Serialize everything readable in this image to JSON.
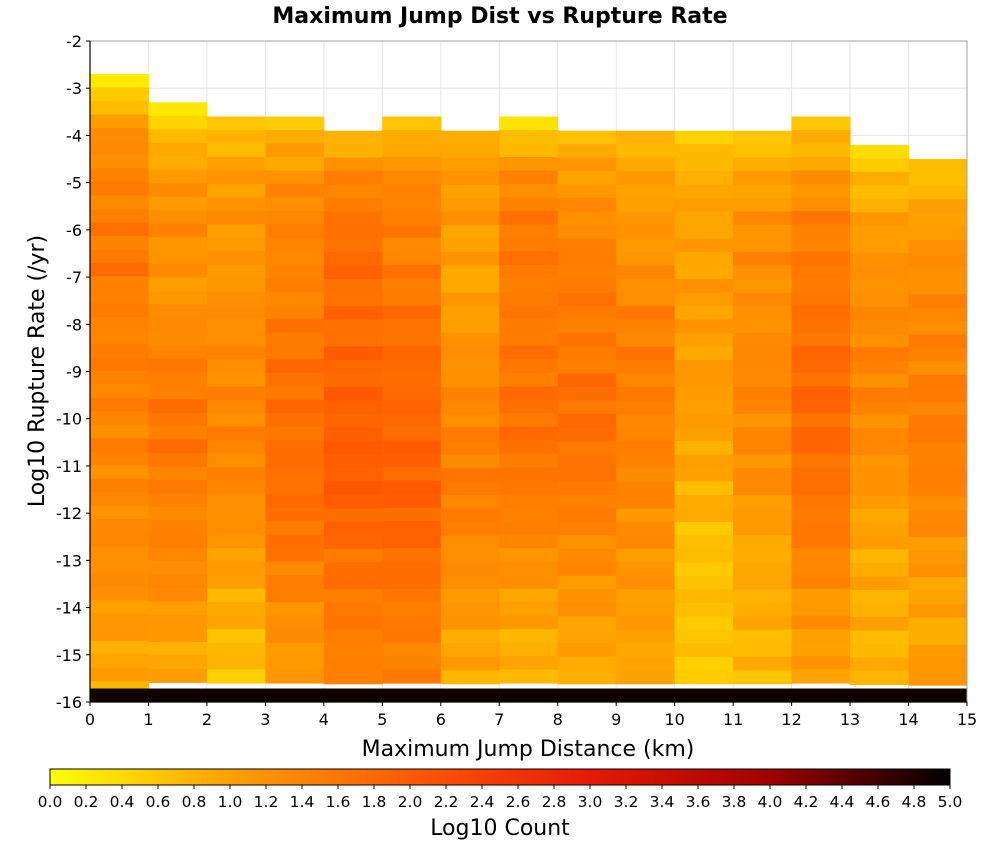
{
  "chart_data": {
    "type": "heatmap",
    "title": "Maximum Jump Dist vs Rupture Rate",
    "xlabel": "Maximum Jump Distance (km)",
    "ylabel": "Log10 Rupture Rate (/yr)",
    "colorbar_label": "Log10 Count",
    "xlim": [
      0,
      15
    ],
    "ylim": [
      -16,
      -2
    ],
    "x_ticks": [
      "0",
      "1",
      "2",
      "3",
      "4",
      "5",
      "6",
      "7",
      "8",
      "9",
      "10",
      "11",
      "12",
      "13",
      "14",
      "15"
    ],
    "y_ticks": [
      "-2",
      "-3",
      "-4",
      "-5",
      "-6",
      "-7",
      "-8",
      "-9",
      "-10",
      "-11",
      "-12",
      "-13",
      "-14",
      "-15",
      "-16"
    ],
    "colorbar_range": [
      0,
      5
    ],
    "colorbar_ticks": [
      "0.0",
      "0.2",
      "0.4",
      "0.6",
      "0.8",
      "1.0",
      "1.2",
      "1.4",
      "1.6",
      "1.8",
      "2.0",
      "2.2",
      "2.4",
      "2.6",
      "2.8",
      "3.0",
      "3.2",
      "3.4",
      "3.6",
      "3.8",
      "4.0",
      "4.2",
      "4.4",
      "4.6",
      "4.8",
      "5.0"
    ],
    "colormap": [
      "#ffff00",
      "#ffa000",
      "#ff5a00",
      "#e61a00",
      "#a00000",
      "#000000"
    ],
    "bin_width_x": 1,
    "bin_height_y": 0.2857,
    "x_bins": [
      0,
      1,
      2,
      3,
      4,
      5,
      6,
      7,
      8,
      9,
      10,
      11,
      12,
      13,
      14
    ],
    "column_top_rate": [
      -2.7,
      -3.3,
      -3.6,
      -3.6,
      -3.9,
      -3.6,
      -3.9,
      -3.6,
      -3.9,
      -3.9,
      -3.9,
      -3.9,
      -3.6,
      -4.2,
      -4.5
    ],
    "column_profiles": [
      [
        0.2,
        1.2,
        1.4,
        1.5,
        1.6,
        1.4,
        1.5,
        1.4,
        1.4,
        1.3,
        1.3,
        1.2,
        1.0,
        0.9
      ],
      [
        0.3,
        0.9,
        1.2,
        1.3,
        1.1,
        1.3,
        1.5,
        1.6,
        1.6,
        1.4,
        1.4,
        1.3,
        1.0,
        0.9
      ],
      [
        0.6,
        1.0,
        1.2,
        1.1,
        1.2,
        1.3,
        1.3,
        1.4,
        1.4,
        1.3,
        1.1,
        0.9,
        0.8,
        0.6
      ],
      [
        0.7,
        1.1,
        1.4,
        1.4,
        1.4,
        1.6,
        1.7,
        1.7,
        1.7,
        1.7,
        1.6,
        1.4,
        1.2,
        1.1
      ],
      [
        0.8,
        1.4,
        1.6,
        1.8,
        1.7,
        1.8,
        1.9,
        1.9,
        2.0,
        1.9,
        1.7,
        1.6,
        1.5,
        1.4
      ],
      [
        0.6,
        1.2,
        1.5,
        1.4,
        1.6,
        1.7,
        1.8,
        1.8,
        1.9,
        1.9,
        1.8,
        1.6,
        1.5,
        1.4
      ],
      [
        0.9,
        1.1,
        1.1,
        1.0,
        1.0,
        1.2,
        1.3,
        1.4,
        1.5,
        1.5,
        1.3,
        1.2,
        1.0,
        0.9
      ],
      [
        0.3,
        1.2,
        1.5,
        1.6,
        1.5,
        1.6,
        1.6,
        1.7,
        1.6,
        1.5,
        1.3,
        1.1,
        0.9,
        0.8
      ],
      [
        0.8,
        1.1,
        1.3,
        1.5,
        1.6,
        1.5,
        1.7,
        1.7,
        1.6,
        1.5,
        1.3,
        1.2,
        1.0,
        0.9
      ],
      [
        0.8,
        1.0,
        1.1,
        1.2,
        1.4,
        1.5,
        1.5,
        1.4,
        1.4,
        1.3,
        1.2,
        1.1,
        1.0,
        0.9
      ],
      [
        0.5,
        0.9,
        1.0,
        1.0,
        1.1,
        1.0,
        1.1,
        1.0,
        0.9,
        0.8,
        0.6,
        0.7,
        0.6,
        0.6
      ],
      [
        0.6,
        1.0,
        1.2,
        1.3,
        1.2,
        1.3,
        1.4,
        1.3,
        1.3,
        1.1,
        0.9,
        0.9,
        0.8,
        0.7
      ],
      [
        0.6,
        1.0,
        1.4,
        1.5,
        1.6,
        1.7,
        1.8,
        1.8,
        1.7,
        1.6,
        1.5,
        1.2,
        1.1,
        1.0
      ],
      [
        0.5,
        0.8,
        1.1,
        1.2,
        1.3,
        1.4,
        1.4,
        1.3,
        1.2,
        1.0,
        0.9,
        0.9,
        0.8,
        0.8
      ],
      [
        0.7,
        0.9,
        1.2,
        1.3,
        1.4,
        1.4,
        1.5,
        1.5,
        1.4,
        1.3,
        1.1,
        1.0,
        0.9,
        1.2
      ]
    ],
    "bottom_row_rate": -16,
    "bottom_row_value": 4.9
  }
}
